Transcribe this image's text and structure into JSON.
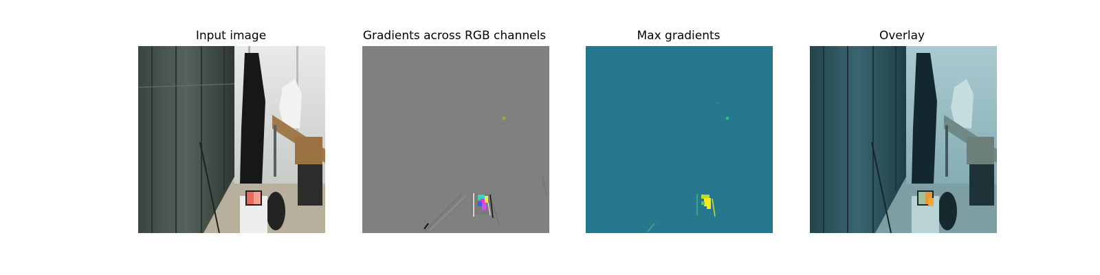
{
  "panels": [
    {
      "title": "Input image"
    },
    {
      "title": "Gradients across RGB channels"
    },
    {
      "title": "Max gradients"
    },
    {
      "title": "Overlay"
    }
  ],
  "colors": {
    "background": "#ffffff",
    "gradient_neutral": "#808080",
    "max_gradient_background": "#27788e",
    "overlay_tint": "#2d6a78"
  }
}
